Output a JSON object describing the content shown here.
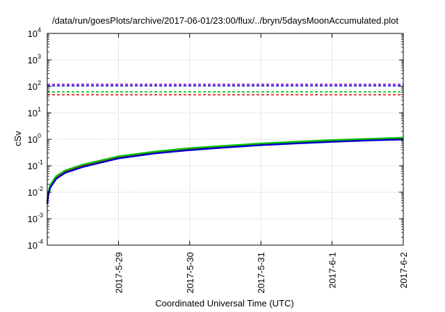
{
  "chart_data": {
    "type": "line",
    "title": "/data/run/goesPlots/archive/2017-06-01/23:00/flux/../bryn/5daysMoonAccumulated.plot",
    "xlabel": "Coordinated Universal Time (UTC)",
    "ylabel": "cSv",
    "xlim": [
      "2017-05-28",
      "2017-06-02"
    ],
    "ylim": [
      0.0001,
      10000
    ],
    "yscale": "log",
    "grid": true,
    "x_ticks": [
      "2017-5-29",
      "2017-5-30",
      "2017-5-31",
      "2017-6-1",
      "2017-6-2"
    ],
    "y_ticks": [
      {
        "base": "10",
        "exp": "-4",
        "value": 0.0001
      },
      {
        "base": "10",
        "exp": "-3",
        "value": 0.001
      },
      {
        "base": "10",
        "exp": "-2",
        "value": 0.01
      },
      {
        "base": "10",
        "exp": "-1",
        "value": 0.1
      },
      {
        "base": "10",
        "exp": "0",
        "value": 1
      },
      {
        "base": "10",
        "exp": "1",
        "value": 10
      },
      {
        "base": "10",
        "exp": "2",
        "value": 100
      },
      {
        "base": "10",
        "exp": "3",
        "value": 1000
      },
      {
        "base": "10",
        "exp": "4",
        "value": 10000
      }
    ],
    "thresholds": [
      {
        "value": 120,
        "color": "#9400d3",
        "style": "dashed"
      },
      {
        "value": 105,
        "color": "#0000cd",
        "style": "dashed"
      },
      {
        "value": 62,
        "color": "#00c000",
        "style": "dashed"
      },
      {
        "value": 48,
        "color": "#e00000",
        "style": "dashed"
      }
    ],
    "series": [
      {
        "color": "#e00000",
        "x": [
          "2017-05-28T00:00",
          "2017-05-28T00:15",
          "2017-05-28T01:00",
          "2017-05-28T03:00",
          "2017-05-28T06:00",
          "2017-05-28T12:00",
          "2017-05-29T00:00",
          "2017-05-29T12:00",
          "2017-05-30T00:00",
          "2017-05-30T12:00",
          "2017-05-31T00:00",
          "2017-05-31T12:00",
          "2017-06-01T00:00",
          "2017-06-01T12:00",
          "2017-06-02T00:00"
        ],
        "values": [
          0.004,
          0.008,
          0.017,
          0.036,
          0.06,
          0.1,
          0.21,
          0.32,
          0.43,
          0.54,
          0.66,
          0.77,
          0.88,
          0.99,
          1.08
        ]
      },
      {
        "color": "#00c000",
        "x": [
          "2017-05-28T00:00",
          "2017-05-28T00:15",
          "2017-05-28T01:00",
          "2017-05-28T03:00",
          "2017-05-28T06:00",
          "2017-05-28T12:00",
          "2017-05-29T00:00",
          "2017-05-29T12:00",
          "2017-05-30T00:00",
          "2017-05-30T12:00",
          "2017-05-31T00:00",
          "2017-05-31T12:00",
          "2017-06-01T00:00",
          "2017-06-01T12:00",
          "2017-06-02T00:00"
        ],
        "values": [
          0.0045,
          0.009,
          0.019,
          0.04,
          0.066,
          0.11,
          0.225,
          0.34,
          0.46,
          0.57,
          0.69,
          0.81,
          0.93,
          1.04,
          1.15
        ]
      },
      {
        "color": "#0000cd",
        "x": [
          "2017-05-28T00:00",
          "2017-05-28T00:15",
          "2017-05-28T01:00",
          "2017-05-28T03:00",
          "2017-05-28T06:00",
          "2017-05-28T12:00",
          "2017-05-29T00:00",
          "2017-05-29T12:00",
          "2017-05-30T00:00",
          "2017-05-30T12:00",
          "2017-05-31T00:00",
          "2017-05-31T12:00",
          "2017-06-01T00:00",
          "2017-06-01T12:00",
          "2017-06-02T00:00"
        ],
        "values": [
          0.0036,
          0.0072,
          0.015,
          0.032,
          0.054,
          0.09,
          0.19,
          0.29,
          0.39,
          0.49,
          0.6,
          0.7,
          0.8,
          0.9,
          0.98
        ]
      }
    ]
  }
}
